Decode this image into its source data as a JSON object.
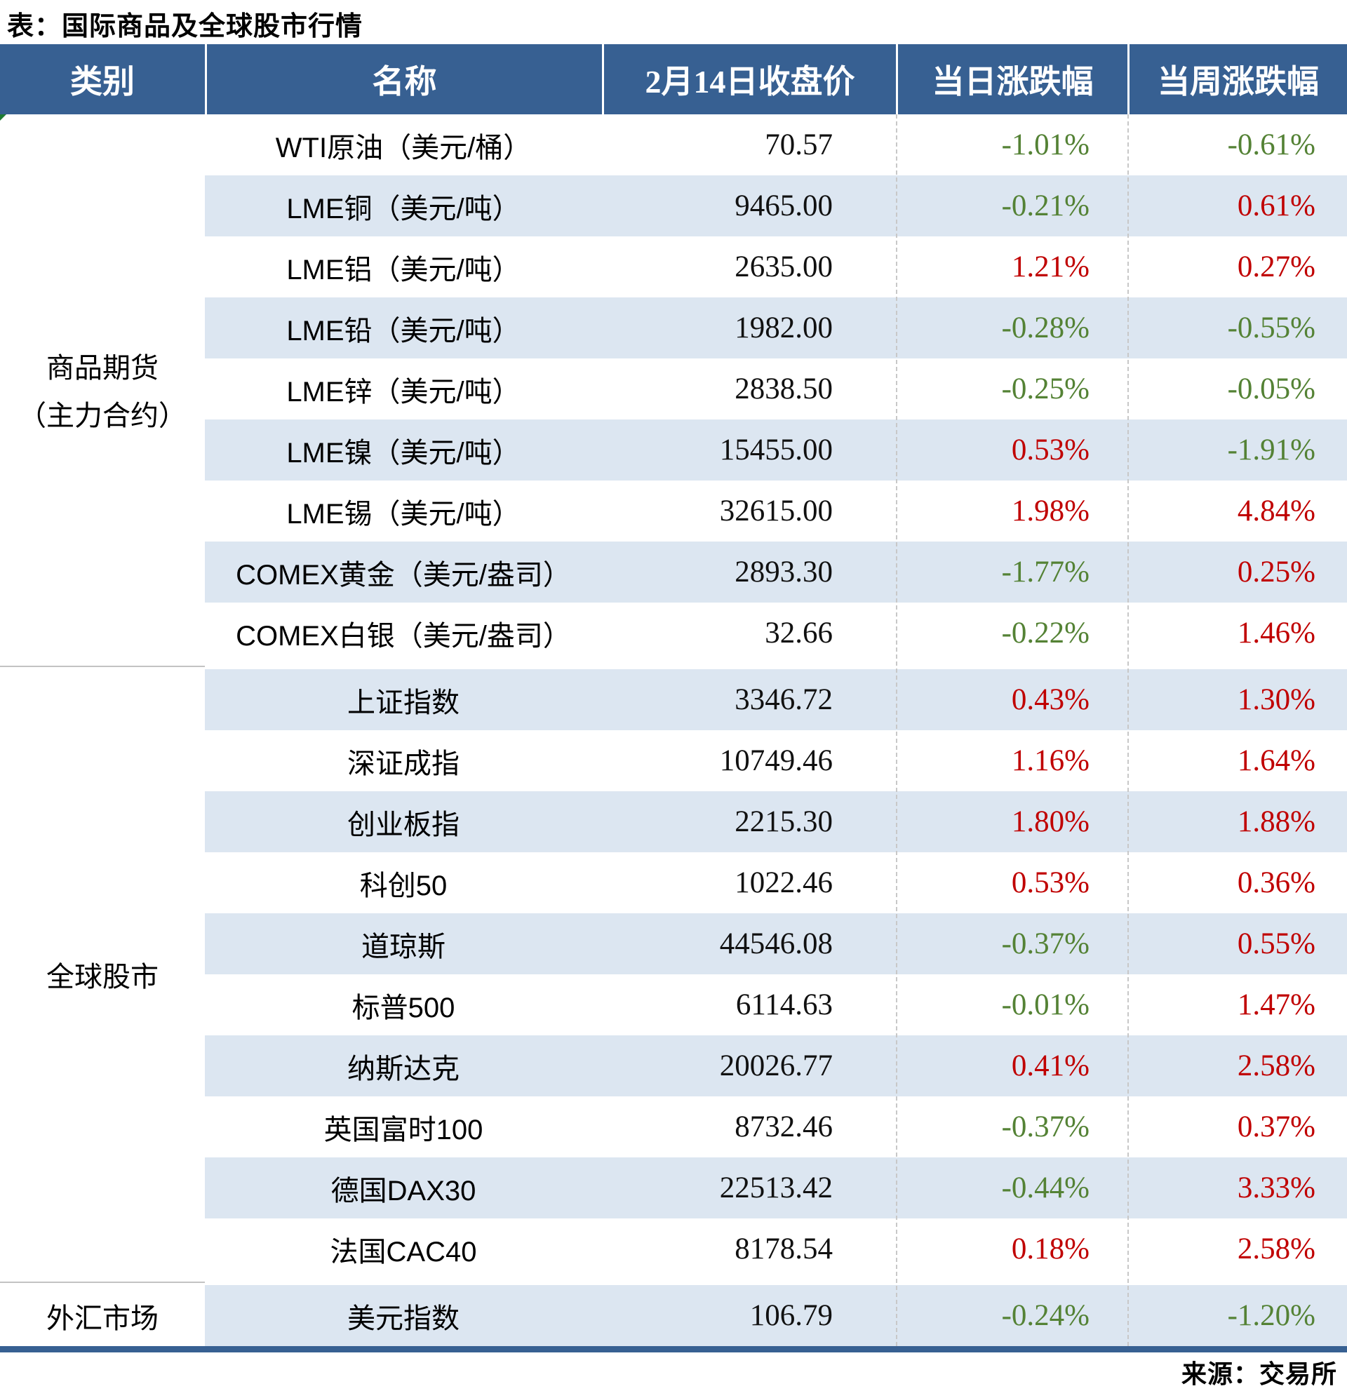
{
  "colors": {
    "up": "#C00000",
    "down": "#548235",
    "header_bg": "#376092",
    "row_alt": "#DCE6F1",
    "table_border": "#376092"
  },
  "chart_data": {
    "type": "table",
    "title": "表：国际商品及全球股市行情",
    "source": "来源：交易所",
    "columns": [
      "类别",
      "名称",
      "2月14日收盘价",
      "当日涨跌幅",
      "当周涨跌幅"
    ],
    "sections": [
      {
        "category": [
          "商品期货",
          "（主力合约）"
        ],
        "rows": [
          {
            "name": "WTI原油（美元/桶）",
            "close": "70.57",
            "day": "-1.01%",
            "week": "-0.61%"
          },
          {
            "name": "LME铜（美元/吨）",
            "close": "9465.00",
            "day": "-0.21%",
            "week": "0.61%"
          },
          {
            "name": "LME铝（美元/吨）",
            "close": "2635.00",
            "day": "1.21%",
            "week": "0.27%"
          },
          {
            "name": "LME铅（美元/吨）",
            "close": "1982.00",
            "day": "-0.28%",
            "week": "-0.55%"
          },
          {
            "name": "LME锌（美元/吨）",
            "close": "2838.50",
            "day": "-0.25%",
            "week": "-0.05%"
          },
          {
            "name": "LME镍（美元/吨）",
            "close": "15455.00",
            "day": "0.53%",
            "week": "-1.91%"
          },
          {
            "name": "LME锡（美元/吨）",
            "close": "32615.00",
            "day": "1.98%",
            "week": "4.84%"
          },
          {
            "name": "COMEX黄金（美元/盎司）",
            "close": "2893.30",
            "day": "-1.77%",
            "week": "0.25%"
          },
          {
            "name": "COMEX白银（美元/盎司）",
            "close": "32.66",
            "day": "-0.22%",
            "week": "1.46%"
          }
        ]
      },
      {
        "category": [
          "全球股市"
        ],
        "rows": [
          {
            "name": "上证指数",
            "close": "3346.72",
            "day": "0.43%",
            "week": "1.30%"
          },
          {
            "name": "深证成指",
            "close": "10749.46",
            "day": "1.16%",
            "week": "1.64%"
          },
          {
            "name": "创业板指",
            "close": "2215.30",
            "day": "1.80%",
            "week": "1.88%"
          },
          {
            "name": "科创50",
            "close": "1022.46",
            "day": "0.53%",
            "week": "0.36%"
          },
          {
            "name": "道琼斯",
            "close": "44546.08",
            "day": "-0.37%",
            "week": "0.55%"
          },
          {
            "name": "标普500",
            "close": "6114.63",
            "day": "-0.01%",
            "week": "1.47%"
          },
          {
            "name": "纳斯达克",
            "close": "20026.77",
            "day": "0.41%",
            "week": "2.58%"
          },
          {
            "name": "英国富时100",
            "close": "8732.46",
            "day": "-0.37%",
            "week": "0.37%"
          },
          {
            "name": "德国DAX30",
            "close": "22513.42",
            "day": "-0.44%",
            "week": "3.33%"
          },
          {
            "name": "法国CAC40",
            "close": "8178.54",
            "day": "0.18%",
            "week": "2.58%"
          }
        ]
      },
      {
        "category": [
          "外汇市场"
        ],
        "rows": [
          {
            "name": "美元指数",
            "close": "106.79",
            "day": "-0.24%",
            "week": "-1.20%"
          }
        ]
      }
    ]
  }
}
